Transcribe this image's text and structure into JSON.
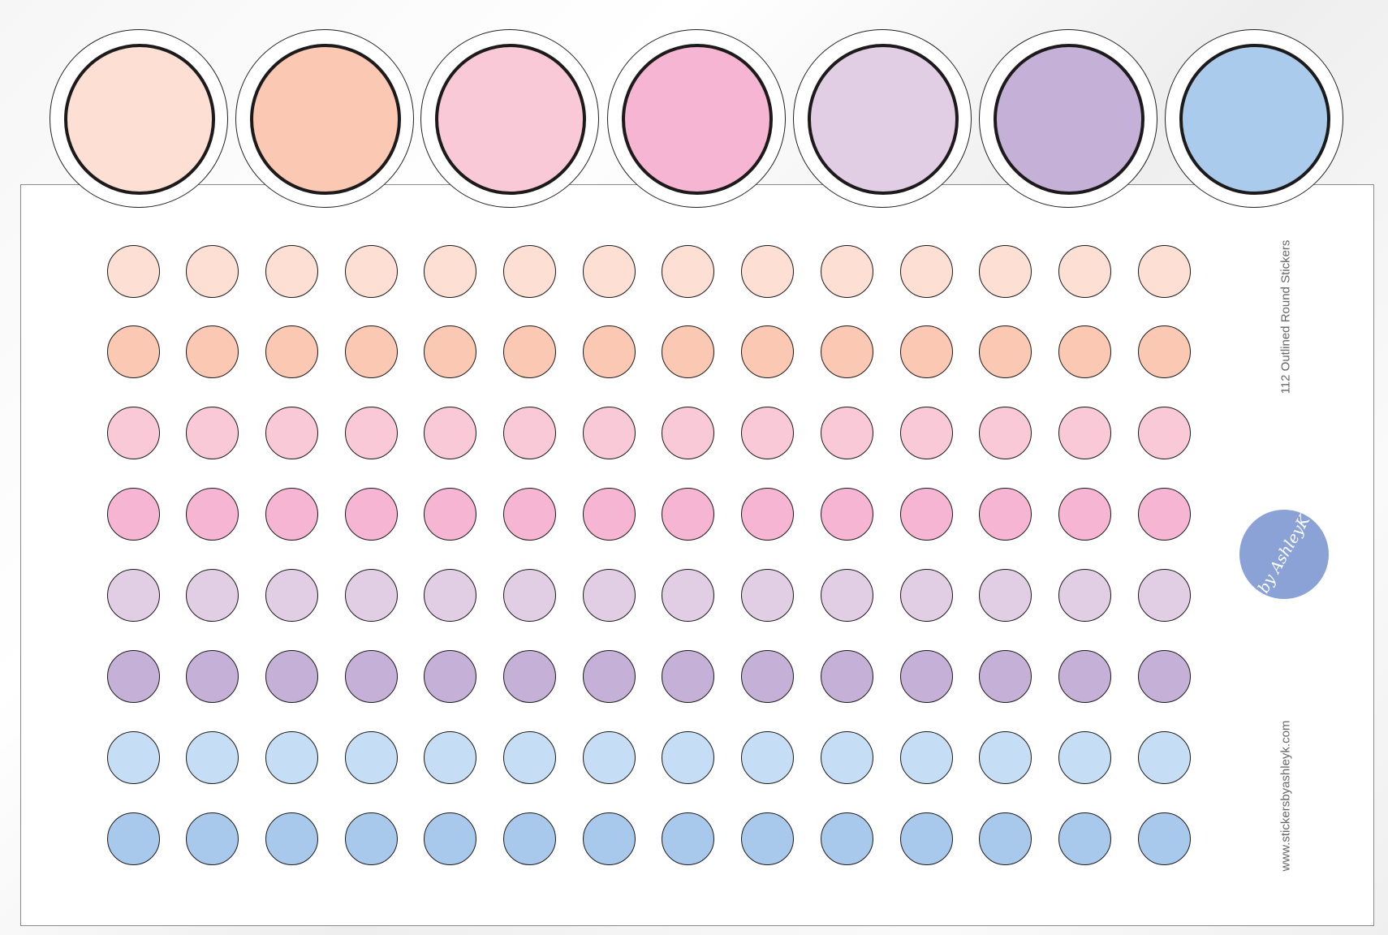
{
  "title": "112 Outlined Round Stickers",
  "website": "www.stickersbyashleyk.com",
  "logo_text": "by AshleyK",
  "large_circle_colors": [
    "#fddfd3",
    "#fbc8b3",
    "#f9c9d7",
    "#f6b5d2",
    "#e1cde4",
    "#c5b0d7",
    "#abcbec"
  ],
  "rows": [
    {
      "color": "#fddfd3",
      "count": 14
    },
    {
      "color": "#fbc8b3",
      "count": 14
    },
    {
      "color": "#f9c9d7",
      "count": 14
    },
    {
      "color": "#f6b5d2",
      "count": 14
    },
    {
      "color": "#e1cde4",
      "count": 14
    },
    {
      "color": "#c5b0d7",
      "count": 14
    },
    {
      "color": "#c6def5",
      "count": 14
    },
    {
      "color": "#a9c9ec",
      "count": 14
    }
  ],
  "outline_color": "#1d1a1b"
}
